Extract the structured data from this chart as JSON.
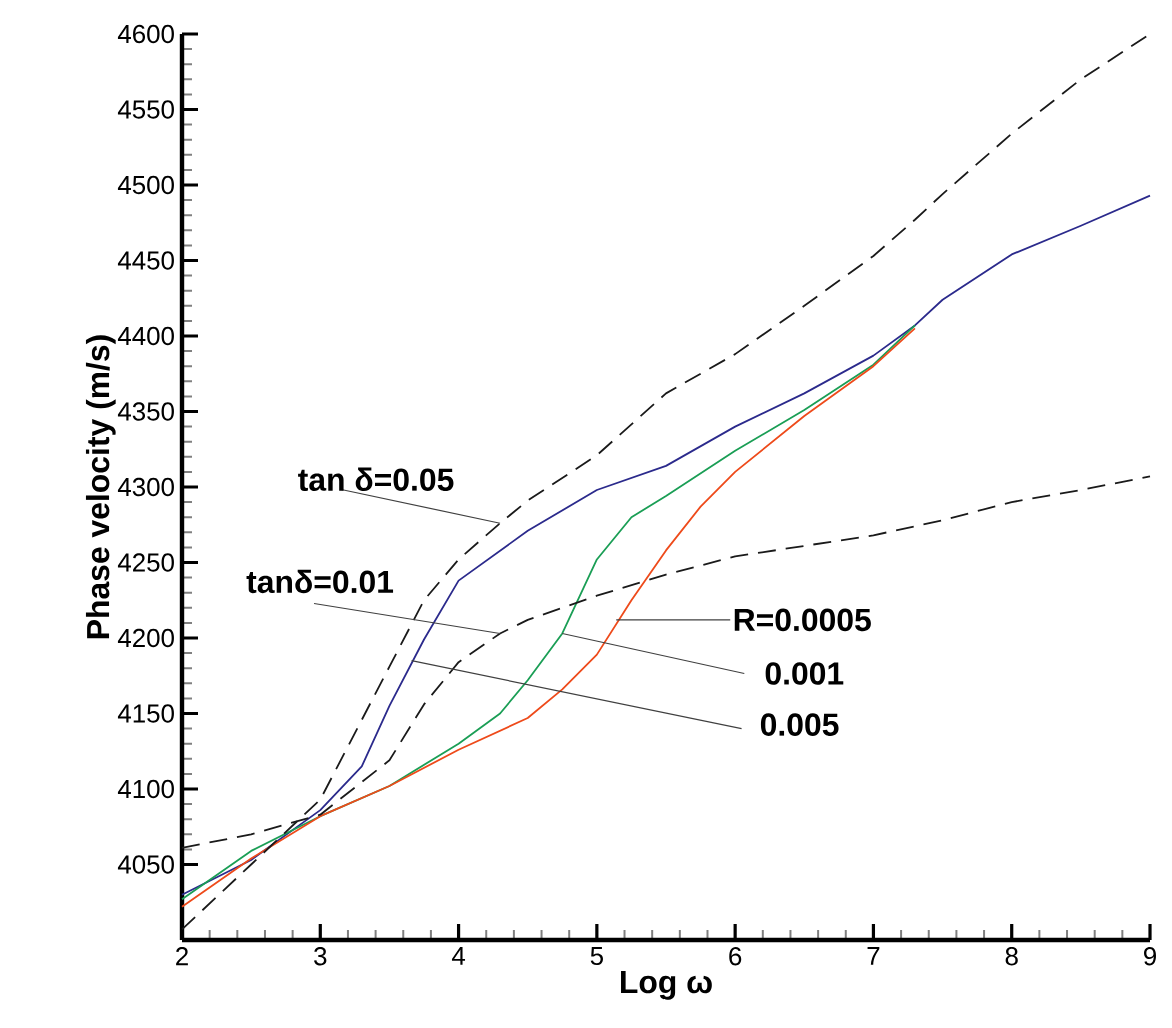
{
  "chart_data": {
    "type": "line",
    "xlabel": "Log ω",
    "ylabel": "Phase velocity (m/s)",
    "xlim": [
      2,
      9
    ],
    "ylim": [
      4000,
      4600
    ],
    "xticks": [
      2,
      3,
      4,
      5,
      6,
      7,
      8,
      9
    ],
    "yticks": [
      4050,
      4100,
      4150,
      4200,
      4250,
      4300,
      4350,
      4400,
      4450,
      4500,
      4550,
      4600
    ],
    "marker": "none",
    "series": [
      {
        "color": "#2b2a8c",
        "line_style": "solid",
        "x": [
          2,
          2.5,
          3,
          3.3,
          3.5,
          3.75,
          4,
          4.5,
          5,
          5.5,
          6,
          6.5,
          7,
          7.3,
          7.5,
          8,
          8.5,
          9
        ],
        "values": [
          4030,
          4053,
          4086,
          4115,
          4155,
          4199,
          4238,
          4271,
          4298,
          4314,
          4340,
          4362,
          4387,
          4407,
          4424,
          4454,
          4473,
          4493
        ]
      },
      {
        "color": "#1a9e55",
        "line_style": "solid",
        "x": [
          2,
          2.5,
          3,
          3.5,
          4,
          4.3,
          4.5,
          4.75,
          5,
          5.25,
          5.5,
          6,
          6.5,
          7,
          7.3
        ],
        "values": [
          4027,
          4059,
          4082,
          4102,
          4130,
          4150,
          4172,
          4203,
          4252,
          4280,
          4294,
          4324,
          4351,
          4381,
          4407
        ]
      },
      {
        "color": "#ee4a1a",
        "line_style": "solid",
        "x": [
          2,
          2.5,
          3,
          3.5,
          4,
          4.5,
          4.75,
          5,
          5.25,
          5.5,
          5.75,
          6,
          6.5,
          7,
          7.3
        ],
        "values": [
          4022,
          4054,
          4082,
          4102,
          4126,
          4147,
          4166,
          4189,
          4225,
          4258,
          4287,
          4310,
          4347,
          4380,
          4405
        ]
      },
      {
        "color": "#1a1a1a",
        "line_style": "dashed",
        "x": [
          2,
          2.5,
          3,
          3.5,
          3.75,
          4,
          4.3,
          4.5,
          5,
          5.5,
          6,
          6.5,
          7,
          7.3,
          7.5,
          8,
          8.5,
          9
        ],
        "values": [
          4007,
          4050,
          4093,
          4181,
          4225,
          4252,
          4276,
          4291,
          4321,
          4362,
          4388,
          4420,
          4453,
          4477,
          4494,
          4534,
          4570,
          4600
        ]
      },
      {
        "color": "#1a1a1a",
        "line_style": "dashed",
        "x": [
          2,
          2.5,
          3,
          3.5,
          3.75,
          4,
          4.3,
          4.5,
          5,
          5.5,
          6,
          6.5,
          7,
          7.5,
          8,
          8.5,
          9
        ],
        "values": [
          4061,
          4070,
          4083,
          4119,
          4156,
          4184,
          4203,
          4212,
          4228,
          4242,
          4254,
          4261,
          4268,
          4278,
          4290,
          4298,
          4307
        ]
      }
    ],
    "annotations": [
      {
        "text": "tan δ=0.05",
        "x": 4.3,
        "y": 4276
      },
      {
        "text": "tanδ=0.01",
        "x": 4.3,
        "y": 4203
      },
      {
        "text": "R=0.0005",
        "x": 5.14,
        "y": 4212
      },
      {
        "text": "0.001",
        "x": 4.75,
        "y": 4203
      },
      {
        "text": "0.005",
        "x": 3.66,
        "y": 4185
      }
    ]
  }
}
